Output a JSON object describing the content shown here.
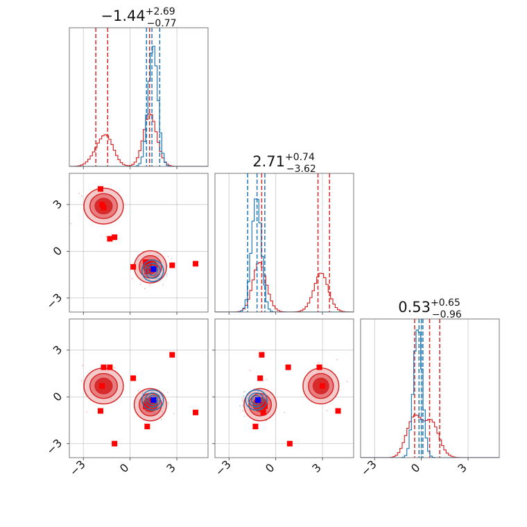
{
  "chart_data": {
    "type": "corner",
    "parameters": [
      {
        "title_value": "−1.44",
        "title_plus": "+2.69",
        "title_minus": "−0.77"
      },
      {
        "title_value": "2.71",
        "title_plus": "+0.74",
        "title_minus": "−3.62"
      },
      {
        "title_value": "0.53",
        "title_plus": "+0.65",
        "title_minus": "−0.96"
      }
    ],
    "axis_range": [
      -3.9,
      5.0
    ],
    "tick_values": [
      -3,
      0,
      3
    ],
    "tick_labels": [
      "−3",
      "0",
      "3"
    ],
    "grid": true,
    "series": [
      {
        "color": "#d62728",
        "fill_colors": [
          "#f4c7c8",
          "#e7787a",
          "#d62728"
        ],
        "quantiles": [
          [
            -2.2,
            -1.44,
            1.25
          ],
          [
            -0.9,
            2.71,
            3.45
          ],
          [
            -0.43,
            0.53,
            1.18
          ]
        ],
        "clusters": [
          {
            "weight": 0.45,
            "mean": [
              -1.7,
              2.9,
              0.7
            ],
            "sd": [
              0.55,
              0.5,
              0.5
            ]
          },
          {
            "weight": 0.55,
            "mean": [
              1.3,
              -1.0,
              -0.5
            ],
            "sd": [
              0.45,
              0.45,
              0.45
            ]
          }
        ],
        "points": [
          [
            -1.9,
            4.0,
            -0.9
          ],
          [
            -1.8,
            3.0,
            0.7
          ],
          [
            -1.7,
            2.8,
            1.9
          ],
          [
            -1.3,
            0.8,
            1.9
          ],
          [
            -1.0,
            0.9,
            -3.0
          ],
          [
            0.2,
            -1.0,
            1.2
          ],
          [
            1.2,
            -0.8,
            -0.5
          ],
          [
            1.0,
            -0.7,
            -0.6
          ],
          [
            1.4,
            -1.1,
            -0.3
          ],
          [
            1.1,
            -1.3,
            -1.9
          ],
          [
            2.7,
            -0.9,
            2.7
          ],
          [
            4.2,
            -0.8,
            -1.0
          ]
        ]
      },
      {
        "color": "#1f77b4",
        "fill_colors": [
          "#aec7e8",
          "#6aa1d0",
          "#1f77b4"
        ],
        "quantiles": [
          [
            1.05,
            1.4,
            1.9
          ],
          [
            -1.8,
            -1.2,
            -0.7
          ],
          [
            -0.15,
            0.0,
            0.1
          ]
        ],
        "clusters": [
          {
            "weight": 1.0,
            "mean": [
              1.45,
              -1.25,
              -0.2
            ],
            "sd": [
              0.3,
              0.3,
              0.28
            ]
          }
        ],
        "points": [
          [
            1.5,
            -1.15,
            -0.2
          ]
        ]
      }
    ]
  }
}
